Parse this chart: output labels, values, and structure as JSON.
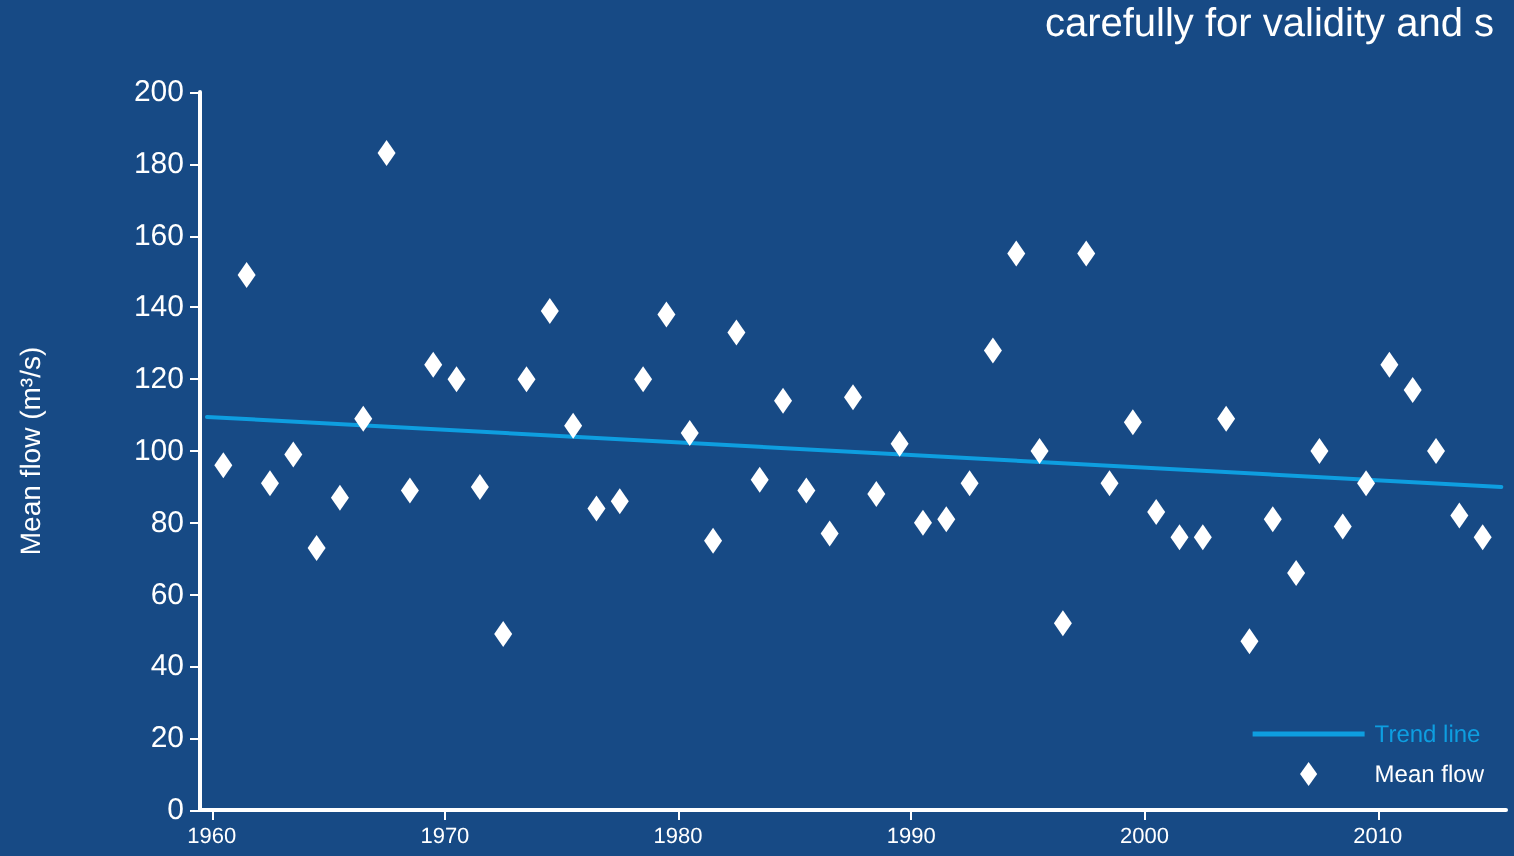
{
  "chart_data": {
    "type": "scatter",
    "ylabel": "Mean flow (m³/s)",
    "annotations": [
      "carefully for validity and s"
    ],
    "xlim": [
      1959.5,
      2015.5
    ],
    "xticks": [
      1960,
      1970,
      1980,
      1990,
      2000,
      2010
    ],
    "ylim": [
      0,
      200
    ],
    "yticks": [
      0,
      20,
      40,
      60,
      80,
      100,
      120,
      140,
      160,
      180,
      200
    ],
    "grid": false,
    "legend": "bottom right",
    "series": [
      {
        "name": "Trend line",
        "type": "line",
        "color": "#0e9ee0",
        "marker": "none",
        "line_style": "solid",
        "x": [
          1959.8,
          2015.3
        ],
        "values": [
          109.5,
          90
        ]
      },
      {
        "name": "Mean flow",
        "color": "#ffffff",
        "marker": "diamond",
        "x": [
          1960.5,
          1961.5,
          1962.5,
          1963.5,
          1964.5,
          1965.5,
          1966.5,
          1967.5,
          1968.5,
          1969.5,
          1970.5,
          1971.5,
          1972.5,
          1973.5,
          1974.5,
          1975.5,
          1976.5,
          1977.5,
          1978.5,
          1979.5,
          1980.5,
          1981.5,
          1982.5,
          1983.5,
          1984.5,
          1985.5,
          1986.5,
          1987.5,
          1988.5,
          1989.5,
          1990.5,
          1991.5,
          1992.5,
          1993.5,
          1994.5,
          1995.5,
          1996.5,
          1997.5,
          1998.5,
          1999.5,
          2000.5,
          2001.5,
          2002.5,
          2003.5,
          2004.5,
          2005.5,
          2006.5,
          2007.5,
          2008.5,
          2009.5,
          2010.5,
          2011.5,
          2012.5,
          2013.5,
          2014.5
        ],
        "values": [
          96,
          149,
          91,
          99,
          73,
          87,
          109,
          183,
          89,
          124,
          120,
          90,
          49,
          120,
          139,
          107,
          84,
          86,
          120,
          138,
          105,
          75,
          133,
          92,
          114,
          89,
          77,
          115,
          88,
          102,
          80,
          81,
          91,
          128,
          155,
          100,
          52,
          155,
          91,
          108,
          83,
          76,
          76,
          109,
          47,
          81,
          66,
          100,
          79,
          91,
          124,
          117,
          100,
          82,
          76
        ]
      }
    ]
  }
}
